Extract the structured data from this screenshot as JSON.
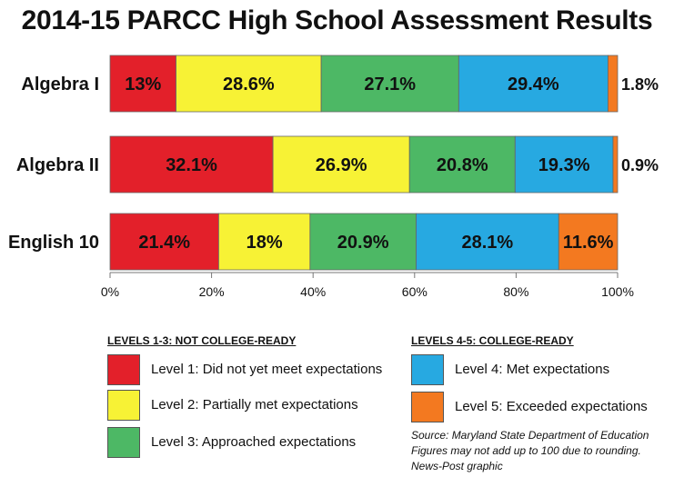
{
  "chart_data": {
    "type": "bar",
    "orientation": "horizontal",
    "stacked": true,
    "title": "2014-15 PARCC High School Assessment Results",
    "categories": [
      "Algebra I",
      "Algebra II",
      "English 10"
    ],
    "series": [
      {
        "name": "Level 1: Did not yet meet expectations",
        "color": "#e3202a",
        "values": [
          13,
          32.1,
          21.4
        ],
        "labels": [
          "13%",
          "32.1%",
          "21.4%"
        ]
      },
      {
        "name": "Level 2: Partially met expectations",
        "color": "#f7f235",
        "values": [
          28.6,
          26.9,
          18
        ],
        "labels": [
          "28.6%",
          "26.9%",
          "18%"
        ]
      },
      {
        "name": "Level 3: Approached expectations",
        "color": "#4db865",
        "values": [
          27.1,
          20.8,
          20.9
        ],
        "labels": [
          "27.1%",
          "20.8%",
          "20.9%"
        ]
      },
      {
        "name": "Level 4: Met expectations",
        "color": "#27a9e1",
        "values": [
          29.4,
          19.3,
          28.1
        ],
        "labels": [
          "29.4%",
          "19.3%",
          "28.1%"
        ]
      },
      {
        "name": "Level 5: Exceeded expectations",
        "color": "#f37920",
        "values": [
          1.8,
          0.9,
          11.6
        ],
        "labels": [
          "1.8%",
          "0.9%",
          "11.6%"
        ]
      }
    ],
    "xlim": [
      0,
      100
    ],
    "xticks": [
      "0%",
      "20%",
      "40%",
      "60%",
      "80%",
      "100%"
    ],
    "legend_placement": "bottom"
  },
  "legend": {
    "group1_heading": "LEVELS 1-3: NOT COLLEGE-READY",
    "group2_heading": "LEVELS 4-5: COLLEGE-READY"
  },
  "notes": {
    "source": "Source: Maryland State Department of Education",
    "rounding": "Figures may not add up to 100 due to rounding.",
    "credit": "News-Post graphic"
  }
}
